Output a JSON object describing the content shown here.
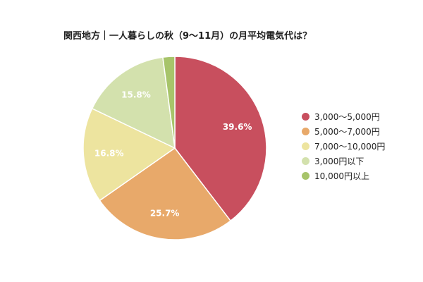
{
  "chart_data": {
    "type": "pie",
    "title": "関西地方｜一人暮らしの秋（9〜11月）の月平均電気代は？",
    "categories": [
      "3,000〜5,000円",
      "5,000〜7,000円",
      "7,000〜10,000円",
      "3,000円以下",
      "10,000円以上"
    ],
    "values": [
      39.6,
      25.7,
      16.8,
      15.8,
      2.1
    ],
    "labels": [
      "39.6%",
      "25.7%",
      "16.8%",
      "15.8%",
      ""
    ],
    "colors": [
      "#c84f5e",
      "#e8a96a",
      "#ede49f",
      "#d3e1ad",
      "#a7c46a"
    ],
    "legend_position": "right",
    "start_angle": "12 o'clock",
    "direction": "clockwise"
  }
}
